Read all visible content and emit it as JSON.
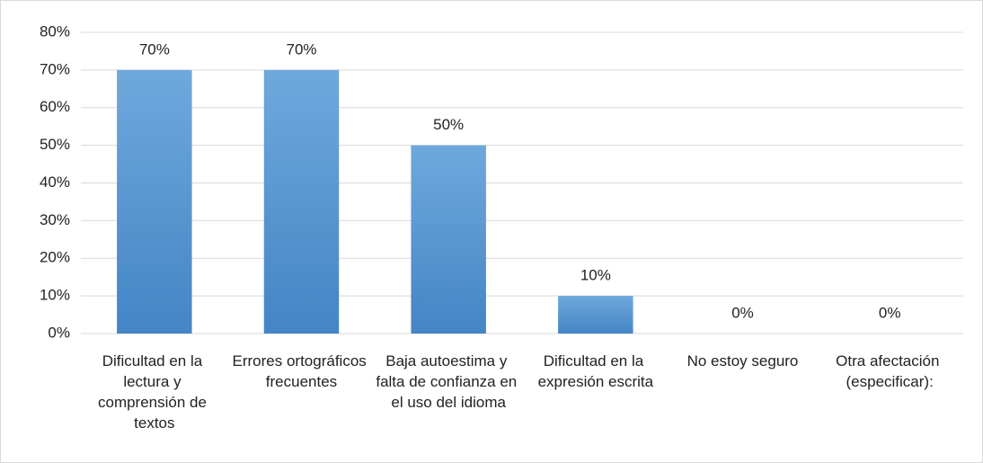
{
  "chart_data": {
    "type": "bar",
    "categories": [
      "Dificultad en la lectura y comprensión de textos",
      "Errores ortográficos frecuentes",
      "Baja autoestima y falta de confianza en el uso del idioma",
      "Dificultad en la expresión escrita",
      "No estoy seguro",
      "Otra afectación (especificar):"
    ],
    "values": [
      70,
      70,
      50,
      10,
      0,
      0
    ],
    "value_labels": [
      "70%",
      "70%",
      "50%",
      "10%",
      "0%",
      "0%"
    ],
    "color": "#5b9bd5",
    "ylim": [
      0,
      80
    ],
    "yticks": [
      {
        "value": 0,
        "label": "0%"
      },
      {
        "value": 10,
        "label": "10%"
      },
      {
        "value": 20,
        "label": "20%"
      },
      {
        "value": 30,
        "label": "30%"
      },
      {
        "value": 40,
        "label": "40%"
      },
      {
        "value": 50,
        "label": "50%"
      },
      {
        "value": 60,
        "label": "60%"
      },
      {
        "value": 70,
        "label": "70%"
      },
      {
        "value": 80,
        "label": "80%"
      }
    ],
    "grid": true
  }
}
